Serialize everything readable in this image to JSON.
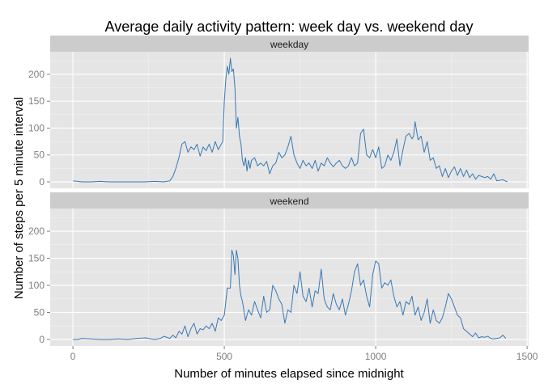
{
  "chart_data": {
    "type": "line",
    "title": "Average daily activity pattern: week day vs. weekend day",
    "xlabel": "Number of minutes elapsed since midnight",
    "ylabel": "Number of steps per 5 minute interval",
    "xlim": [
      -75,
      1505
    ],
    "ylim": [
      -12,
      242
    ],
    "x_ticks": [
      0,
      500,
      1000,
      1500
    ],
    "y_ticks": [
      0,
      50,
      100,
      150,
      200
    ],
    "grid": true,
    "legend": "none",
    "line_color": "#3a78b5",
    "panel_bg": "#e5e5e5",
    "strip_bg": "#cccccc",
    "panels": [
      {
        "label": "weekday",
        "series": {
          "x": [
            0,
            15,
            30,
            60,
            90,
            120,
            150,
            180,
            210,
            240,
            270,
            300,
            320,
            330,
            340,
            350,
            360,
            370,
            380,
            390,
            400,
            410,
            420,
            430,
            440,
            450,
            460,
            470,
            480,
            490,
            495,
            500,
            505,
            510,
            515,
            520,
            525,
            530,
            535,
            540,
            545,
            550,
            555,
            560,
            565,
            570,
            575,
            580,
            585,
            590,
            600,
            610,
            620,
            630,
            640,
            650,
            660,
            670,
            680,
            690,
            700,
            710,
            720,
            730,
            740,
            750,
            760,
            770,
            780,
            790,
            800,
            810,
            820,
            830,
            840,
            850,
            860,
            870,
            880,
            890,
            900,
            910,
            920,
            930,
            940,
            950,
            960,
            970,
            980,
            990,
            1000,
            1010,
            1020,
            1030,
            1040,
            1050,
            1060,
            1070,
            1080,
            1090,
            1100,
            1110,
            1120,
            1125,
            1130,
            1140,
            1150,
            1160,
            1170,
            1180,
            1190,
            1200,
            1210,
            1220,
            1230,
            1240,
            1250,
            1260,
            1270,
            1280,
            1290,
            1300,
            1310,
            1320,
            1330,
            1340,
            1350,
            1360,
            1370,
            1380,
            1390,
            1400,
            1410,
            1420,
            1435
          ],
          "y": [
            2,
            1,
            0,
            0,
            1,
            0,
            0,
            0,
            0,
            0,
            1,
            0,
            2,
            10,
            25,
            45,
            70,
            75,
            55,
            65,
            60,
            70,
            48,
            65,
            58,
            70,
            55,
            75,
            60,
            70,
            75,
            150,
            190,
            215,
            200,
            230,
            205,
            210,
            175,
            100,
            120,
            85,
            70,
            40,
            30,
            45,
            20,
            40,
            25,
            40,
            45,
            30,
            35,
            30,
            38,
            15,
            30,
            35,
            55,
            45,
            50,
            65,
            85,
            50,
            35,
            25,
            40,
            30,
            35,
            25,
            40,
            20,
            35,
            30,
            45,
            35,
            28,
            35,
            40,
            30,
            25,
            30,
            45,
            30,
            35,
            90,
            98,
            50,
            45,
            60,
            45,
            65,
            25,
            30,
            50,
            40,
            55,
            80,
            30,
            60,
            85,
            90,
            80,
            85,
            112,
            78,
            85,
            55,
            75,
            40,
            45,
            25,
            30,
            10,
            25,
            8,
            20,
            28,
            12,
            25,
            10,
            22,
            8,
            15,
            5,
            12,
            10,
            8,
            10,
            5,
            15,
            2,
            3,
            4,
            0
          ],
          "name": ""
        }
      },
      {
        "label": "weekend",
        "series": {
          "x": [
            0,
            15,
            30,
            60,
            90,
            120,
            150,
            180,
            210,
            240,
            270,
            290,
            300,
            320,
            330,
            340,
            350,
            360,
            370,
            380,
            390,
            400,
            410,
            420,
            430,
            440,
            450,
            460,
            470,
            480,
            490,
            500,
            510,
            520,
            525,
            530,
            535,
            540,
            545,
            550,
            555,
            560,
            570,
            580,
            590,
            600,
            610,
            620,
            630,
            640,
            650,
            660,
            670,
            680,
            690,
            700,
            710,
            720,
            730,
            740,
            750,
            760,
            770,
            780,
            790,
            800,
            810,
            820,
            830,
            840,
            850,
            860,
            870,
            880,
            890,
            900,
            910,
            920,
            930,
            940,
            950,
            960,
            970,
            980,
            990,
            1000,
            1010,
            1020,
            1030,
            1040,
            1050,
            1060,
            1070,
            1080,
            1090,
            1100,
            1110,
            1120,
            1130,
            1140,
            1150,
            1160,
            1170,
            1180,
            1190,
            1200,
            1210,
            1220,
            1230,
            1240,
            1250,
            1260,
            1270,
            1280,
            1290,
            1300,
            1310,
            1320,
            1330,
            1340,
            1350,
            1360,
            1370,
            1380,
            1390,
            1400,
            1410,
            1420,
            1430
          ],
          "y": [
            0,
            0,
            2,
            1,
            0,
            0,
            1,
            0,
            2,
            3,
            0,
            2,
            6,
            2,
            8,
            3,
            15,
            10,
            25,
            5,
            20,
            30,
            10,
            20,
            18,
            25,
            20,
            30,
            15,
            40,
            35,
            45,
            95,
            95,
            165,
            155,
            120,
            165,
            150,
            100,
            80,
            70,
            35,
            55,
            45,
            70,
            55,
            40,
            80,
            50,
            55,
            100,
            90,
            75,
            65,
            30,
            55,
            50,
            100,
            85,
            125,
            80,
            70,
            95,
            60,
            90,
            85,
            130,
            75,
            60,
            55,
            85,
            65,
            55,
            75,
            45,
            65,
            90,
            125,
            140,
            100,
            110,
            80,
            60,
            120,
            145,
            140,
            95,
            105,
            100,
            110,
            80,
            60,
            70,
            45,
            70,
            65,
            80,
            45,
            60,
            35,
            50,
            75,
            30,
            55,
            35,
            30,
            40,
            60,
            85,
            75,
            60,
            45,
            40,
            20,
            15,
            10,
            5,
            12,
            3,
            5,
            4,
            6,
            2,
            1,
            2,
            3,
            8,
            2
          ]
        }
      }
    ]
  }
}
